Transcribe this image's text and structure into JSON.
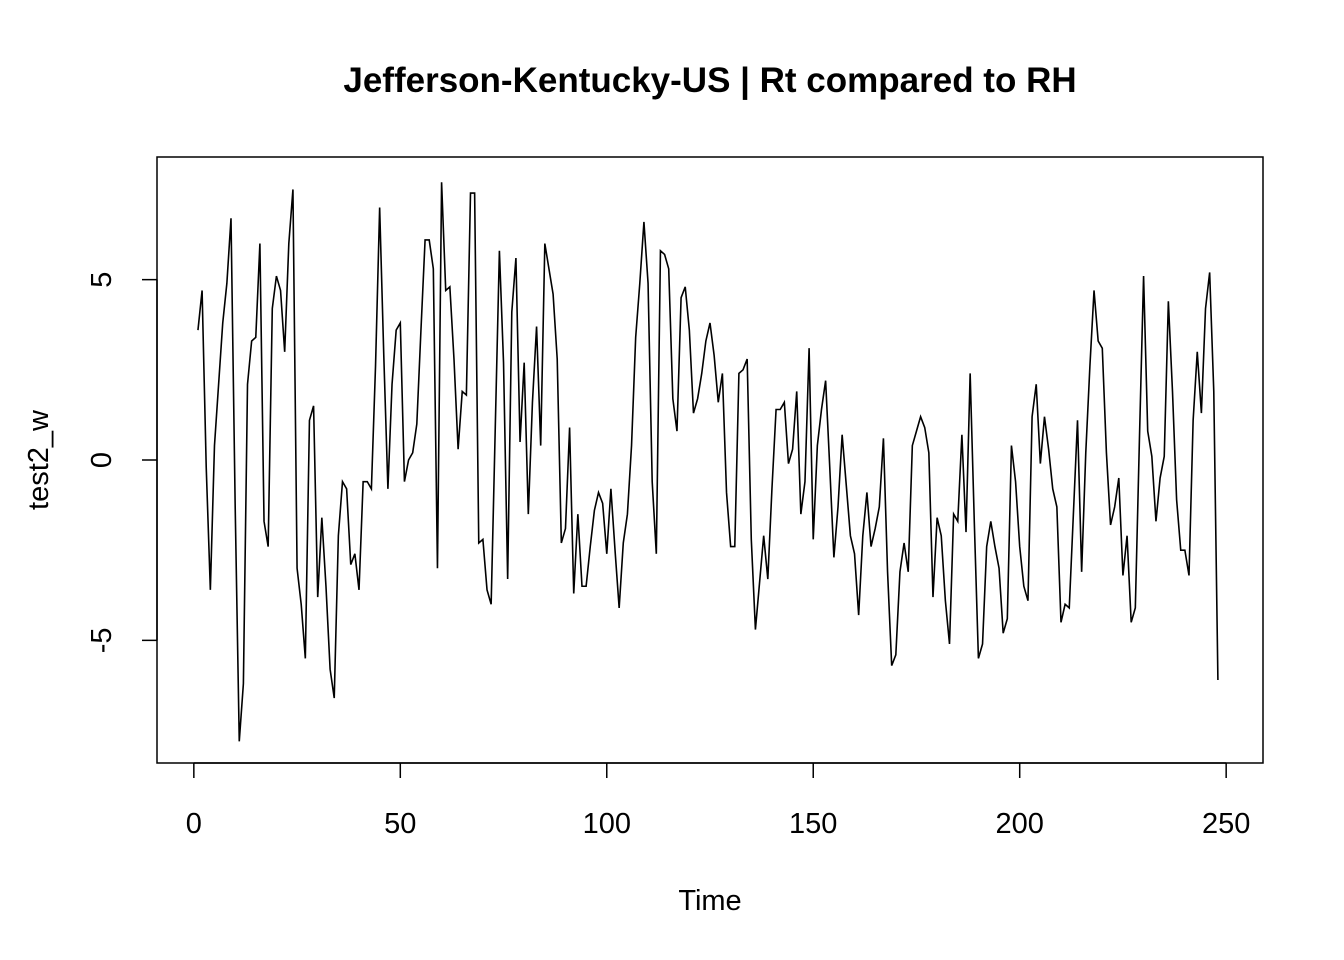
{
  "chart_data": {
    "type": "line",
    "title": "Jefferson-Kentucky-US | Rt compared to RH",
    "xlabel": "Time",
    "ylabel": "test2_w",
    "xlim": [
      -8.92,
      258.92
    ],
    "ylim": [
      -8.4,
      8.4
    ],
    "x_ticks": [
      0,
      50,
      100,
      150,
      200,
      250
    ],
    "y_ticks": [
      -5,
      0,
      5
    ],
    "grid": false,
    "legend": "none",
    "line_color": "#000000",
    "x_start": 1,
    "series": [
      {
        "values": [
          3.6,
          4.7,
          -0.2,
          -3.6,
          0.4,
          2.1,
          3.8,
          4.9,
          6.7,
          -1.2,
          -7.8,
          -6.2,
          2.1,
          3.3,
          3.4,
          6.0,
          -1.7,
          -2.4,
          4.2,
          5.1,
          4.7,
          3.0,
          6.0,
          7.5,
          -3.0,
          -4.0,
          -5.5,
          1.1,
          1.5,
          -3.8,
          -1.6,
          -3.5,
          -5.8,
          -6.6,
          -2.1,
          -0.6,
          -0.8,
          -2.9,
          -2.6,
          -3.6,
          -0.6,
          -0.6,
          -0.8,
          2.6,
          7.0,
          2.9,
          -0.8,
          2.1,
          3.6,
          3.8,
          -0.6,
          0.0,
          0.2,
          1.0,
          3.6,
          6.1,
          6.1,
          5.3,
          -3.0,
          7.7,
          4.7,
          4.8,
          2.8,
          0.3,
          1.9,
          1.8,
          7.4,
          7.4,
          -2.3,
          -2.2,
          -3.6,
          -4.0,
          0.9,
          5.8,
          2.7,
          -3.3,
          4.1,
          5.6,
          0.5,
          2.7,
          -1.5,
          1.6,
          3.7,
          0.4,
          6.0,
          5.3,
          4.6,
          2.8,
          -2.3,
          -1.9,
          0.9,
          -3.7,
          -1.5,
          -3.5,
          -3.5,
          -2.4,
          -1.4,
          -0.9,
          -1.2,
          -2.6,
          -0.8,
          -2.5,
          -4.1,
          -2.3,
          -1.5,
          0.4,
          3.4,
          4.9,
          6.6,
          4.9,
          -0.6,
          -2.6,
          5.8,
          5.7,
          5.3,
          1.7,
          0.8,
          4.5,
          4.8,
          3.6,
          1.3,
          1.7,
          2.4,
          3.3,
          3.8,
          2.9,
          1.6,
          2.4,
          -0.9,
          -2.4,
          -2.4,
          2.4,
          2.5,
          2.8,
          -2.2,
          -4.7,
          -3.4,
          -2.1,
          -3.3,
          -0.8,
          1.4,
          1.4,
          1.6,
          -0.1,
          0.3,
          1.9,
          -1.5,
          -0.6,
          3.1,
          -2.2,
          0.4,
          1.4,
          2.2,
          -0.2,
          -2.7,
          -1.3,
          0.7,
          -0.7,
          -2.1,
          -2.6,
          -4.3,
          -2.1,
          -0.9,
          -2.4,
          -1.9,
          -1.3,
          0.6,
          -3.1,
          -5.7,
          -5.4,
          -3.1,
          -2.3,
          -3.1,
          0.4,
          0.8,
          1.2,
          0.9,
          0.2,
          -3.8,
          -1.6,
          -2.1,
          -3.9,
          -5.1,
          -1.5,
          -1.7,
          0.7,
          -2.0,
          2.4,
          -1.7,
          -5.5,
          -5.1,
          -2.4,
          -1.7,
          -2.4,
          -3.0,
          -4.8,
          -4.4,
          0.4,
          -0.6,
          -2.4,
          -3.5,
          -3.9,
          1.2,
          2.1,
          -0.1,
          1.2,
          0.3,
          -0.8,
          -1.3,
          -4.5,
          -4.0,
          -4.1,
          -1.5,
          1.1,
          -3.1,
          0.2,
          2.6,
          4.7,
          3.3,
          3.1,
          0.2,
          -1.8,
          -1.3,
          -0.5,
          -3.2,
          -2.1,
          -4.5,
          -4.1,
          0.6,
          5.1,
          0.8,
          0.1,
          -1.7,
          -0.5,
          0.1,
          4.4,
          1.9,
          -1.1,
          -2.5,
          -2.5,
          -3.2,
          1.1,
          3.0,
          1.3,
          4.2,
          5.2,
          1.9,
          -6.1
        ]
      }
    ]
  }
}
